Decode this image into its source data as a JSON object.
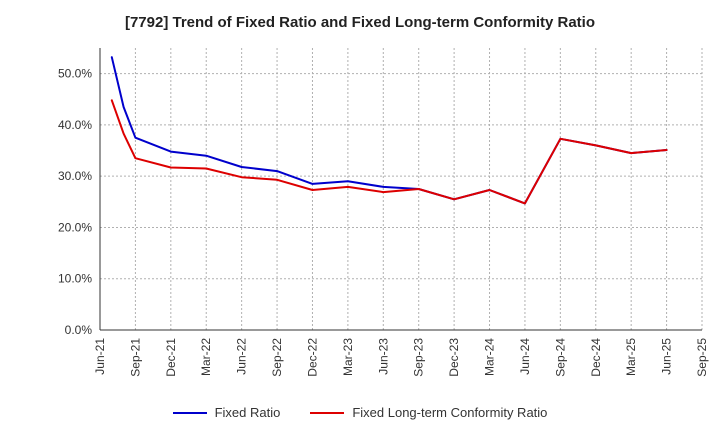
{
  "chart_data": {
    "type": "line",
    "title": "[7792]  Trend of Fixed Ratio and Fixed Long-term Conformity Ratio",
    "xlabel": "",
    "ylabel": "",
    "ylim": [
      0,
      55
    ],
    "x_tick_labels": [
      "Jun-21",
      "Sep-21",
      "Dec-21",
      "Mar-22",
      "Jun-22",
      "Sep-22",
      "Dec-22",
      "Mar-23",
      "Jun-23",
      "Sep-23",
      "Dec-23",
      "Mar-24",
      "Jun-24",
      "Sep-24",
      "Dec-24",
      "Mar-25",
      "Jun-25",
      "Sep-25"
    ],
    "y_tick_labels": [
      "0.0%",
      "10.0%",
      "20.0%",
      "30.0%",
      "40.0%",
      "50.0%"
    ],
    "y_ticks": [
      0,
      10,
      20,
      30,
      40,
      50
    ],
    "grid": true,
    "legend_position": "bottom",
    "x": [
      "Jul-21",
      "Aug-21",
      "Sep-21",
      "Dec-21",
      "Mar-22",
      "Jun-22",
      "Sep-22",
      "Dec-22",
      "Mar-23",
      "Jun-23",
      "Sep-23",
      "Dec-23",
      "Mar-24",
      "Jun-24",
      "Sep-24",
      "Dec-24",
      "Mar-25",
      "Jun-25"
    ],
    "series": [
      {
        "name": "Fixed Ratio",
        "color": "#0000cc",
        "values": [
          53.2,
          43.5,
          37.5,
          34.8,
          34.0,
          31.8,
          31.0,
          28.5,
          29.0,
          27.9,
          27.5,
          25.5,
          27.3,
          24.7,
          37.3,
          36.0,
          34.5,
          35.1
        ]
      },
      {
        "name": "Fixed Long-term Conformity Ratio",
        "color": "#dd0000",
        "values": [
          44.8,
          38.3,
          33.5,
          31.7,
          31.5,
          29.8,
          29.3,
          27.3,
          27.9,
          26.9,
          27.5,
          25.5,
          27.3,
          24.7,
          37.3,
          36.0,
          34.5,
          35.1
        ]
      }
    ]
  }
}
